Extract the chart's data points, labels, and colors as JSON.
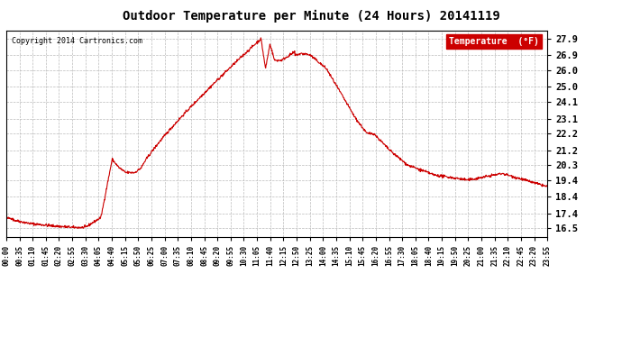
{
  "title": "Outdoor Temperature per Minute (24 Hours) 20141119",
  "copyright": "Copyright 2014 Cartronics.com",
  "legend_label": "Temperature  (°F)",
  "line_color": "#cc0000",
  "background_color": "#ffffff",
  "plot_bg_color": "#ffffff",
  "grid_color": "#bbbbbb",
  "ylabel_values": [
    16.5,
    17.4,
    18.4,
    19.4,
    20.3,
    21.2,
    22.2,
    23.1,
    24.1,
    25.0,
    26.0,
    26.9,
    27.9
  ],
  "ylim": [
    16.0,
    28.4
  ],
  "x_tick_labels": [
    "00:00",
    "00:35",
    "01:10",
    "01:45",
    "02:20",
    "02:55",
    "03:30",
    "04:05",
    "04:40",
    "05:15",
    "05:50",
    "06:25",
    "07:00",
    "07:35",
    "08:10",
    "08:45",
    "09:20",
    "09:55",
    "10:30",
    "11:05",
    "11:40",
    "12:15",
    "12:50",
    "13:25",
    "14:00",
    "14:35",
    "15:10",
    "15:45",
    "16:20",
    "16:55",
    "17:30",
    "18:05",
    "18:40",
    "19:15",
    "19:50",
    "20:25",
    "21:00",
    "21:35",
    "22:10",
    "22:45",
    "23:20",
    "23:55"
  ],
  "n_points": 1440
}
